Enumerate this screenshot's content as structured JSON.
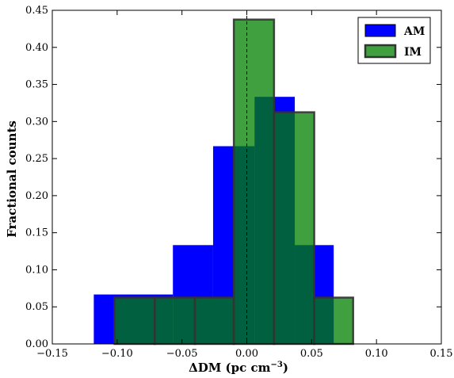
{
  "chart_data": {
    "type": "bar",
    "subtype": "histogram",
    "xlabel": "ΔDM (pc cm",
    "xlabel_sup": "−3",
    "xlabel_close": ")",
    "ylabel": "Fractional counts",
    "xlim": [
      -0.15,
      0.15
    ],
    "ylim": [
      0.0,
      0.45
    ],
    "xticks": [
      -0.15,
      -0.1,
      -0.05,
      0.0,
      0.05,
      0.1,
      0.15
    ],
    "xtick_labels": [
      "−0.15",
      "−0.10",
      "−0.05",
      "0.00",
      "0.05",
      "0.10",
      "0.15"
    ],
    "yticks": [
      0.0,
      0.05,
      0.1,
      0.15,
      0.2,
      0.25,
      0.3,
      0.35,
      0.4,
      0.45
    ],
    "ytick_labels": [
      "0.00",
      "0.05",
      "0.10",
      "0.15",
      "0.20",
      "0.25",
      "0.30",
      "0.35",
      "0.40",
      "0.45"
    ],
    "vline_x": 0.0,
    "vline_style": "dashed",
    "legend_position": "top-right",
    "series": [
      {
        "name": "AM",
        "color": "#0000ff",
        "bins": [
          {
            "x0": -0.118,
            "x1": -0.057,
            "value": 0.0667
          },
          {
            "x0": -0.057,
            "x1": -0.026,
            "value": 0.1333
          },
          {
            "x0": -0.026,
            "x1": -0.01,
            "value": 0.2667
          },
          {
            "x0": -0.01,
            "x1": 0.006,
            "value": 0.2667
          },
          {
            "x0": 0.006,
            "x1": 0.021,
            "value": 0.3333
          },
          {
            "x0": 0.021,
            "x1": 0.037,
            "value": 0.3333
          },
          {
            "x0": 0.037,
            "x1": 0.052,
            "value": 0.1333
          },
          {
            "x0": 0.052,
            "x1": 0.067,
            "value": 0.1333
          }
        ]
      },
      {
        "name": "IM",
        "color": "#008000",
        "bins": [
          {
            "x0": -0.102,
            "x1": -0.071,
            "value": 0.0625
          },
          {
            "x0": -0.071,
            "x1": -0.04,
            "value": 0.0625
          },
          {
            "x0": -0.04,
            "x1": -0.01,
            "value": 0.0625
          },
          {
            "x0": -0.01,
            "x1": 0.021,
            "value": 0.4375
          },
          {
            "x0": 0.021,
            "x1": 0.052,
            "value": 0.3125
          },
          {
            "x0": 0.052,
            "x1": 0.082,
            "value": 0.0625
          }
        ]
      }
    ]
  }
}
